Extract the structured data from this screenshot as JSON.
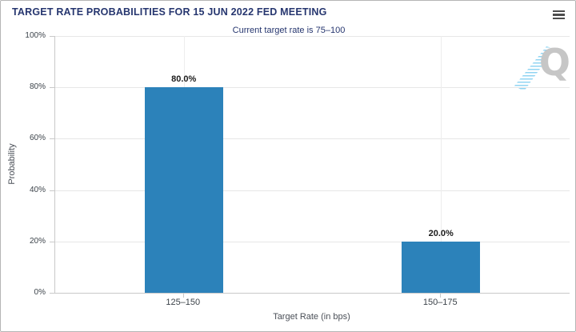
{
  "chart_data": {
    "type": "bar",
    "title": "TARGET RATE PROBABILITIES FOR 15 JUN 2022 FED MEETING",
    "subtitle": "Current target rate is 75–100",
    "categories": [
      "125–150",
      "150–175"
    ],
    "values": [
      80.0,
      20.0
    ],
    "data_labels": [
      "80.0%",
      "20.0%"
    ],
    "xlabel": "Target Rate (in bps)",
    "ylabel": "Probability",
    "ylim": [
      0,
      100
    ],
    "yticks": [
      0,
      20,
      40,
      60,
      80,
      100
    ],
    "ytick_labels": [
      "0%",
      "20%",
      "40%",
      "60%",
      "80%",
      "100%"
    ],
    "grid": true,
    "legend": "none",
    "bar_color": "#2c82ba"
  },
  "header": {
    "menu_icon": "hamburger-menu-icon"
  },
  "watermark": {
    "letter": "Q"
  },
  "colors": {
    "title_navy": "#26366f",
    "bar_blue": "#2c82ba",
    "gridline_gray": "#e7e7e7",
    "axis_line_gray": "#c9c9c9",
    "widget_border_gray": "#b5b5b5",
    "tick_label_gray": "#3c434a",
    "axis_title_gray": "#4a4f57",
    "data_label_dark": "#1c1c1c",
    "menu_icon_gray": "#4d4d4d",
    "watermark_gray": "#c6c6c6",
    "watermark_blue": "#7dcdf0"
  }
}
